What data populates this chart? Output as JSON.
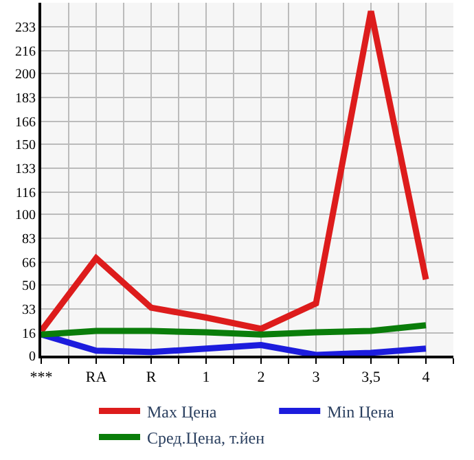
{
  "chart_data": {
    "type": "line",
    "categories": [
      "***",
      "RA",
      "R",
      "1",
      "2",
      "3",
      "3,5",
      "4"
    ],
    "series": [
      {
        "name": "Max Цена",
        "color": "#dd1c1c",
        "values": [
          17.5,
          69,
          34,
          27,
          19,
          37,
          244,
          54
        ]
      },
      {
        "name": "Min Цена",
        "color": "#1c1cdd",
        "values": [
          15,
          3.5,
          2.5,
          5,
          7.5,
          0.5,
          2,
          5
        ]
      },
      {
        "name": "Сред.Цена, т.йен",
        "color": "#0a7d0a",
        "values": [
          15,
          17.5,
          17.5,
          16.5,
          15,
          16.5,
          17.5,
          21.5
        ]
      }
    ],
    "ylim": [
      0,
      250
    ],
    "yticks": [
      0,
      16,
      33,
      50,
      66,
      83,
      100,
      116,
      133,
      150,
      166,
      183,
      200,
      216,
      233
    ],
    "grid": true,
    "legend": "bottom",
    "marker": "none",
    "line_style": "solid"
  }
}
